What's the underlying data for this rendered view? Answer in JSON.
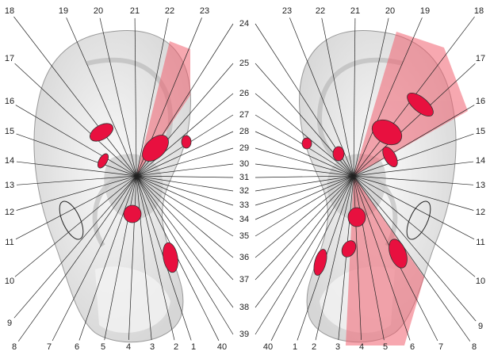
{
  "diagram": {
    "left_ear": {
      "top_labels": [
        "18",
        "19",
        "20",
        "21",
        "22",
        "23"
      ],
      "side_labels": [
        "17",
        "16",
        "15",
        "14",
        "13",
        "12",
        "11",
        "10",
        "9"
      ],
      "bottom_labels": [
        "8",
        "7",
        "6",
        "5",
        "4",
        "3",
        "2",
        "1",
        "40"
      ]
    },
    "middle_labels": [
      "24",
      "25",
      "26",
      "27",
      "28",
      "29",
      "30",
      "31",
      "32",
      "33",
      "34",
      "35",
      "36",
      "37",
      "38",
      "39"
    ],
    "right_ear": {
      "top_labels": [
        "23",
        "22",
        "21",
        "20",
        "19",
        "18"
      ],
      "side_labels": [
        "17",
        "16",
        "15",
        "14",
        "13",
        "12",
        "11",
        "10",
        "9"
      ],
      "bottom_labels": [
        "40",
        "1",
        "2",
        "3",
        "4",
        "5",
        "6",
        "7",
        "8"
      ]
    },
    "colors": {
      "highlight": "#e8103f",
      "sector": "#f08080",
      "line": "#222222",
      "ear": "#e4e4e4"
    }
  }
}
